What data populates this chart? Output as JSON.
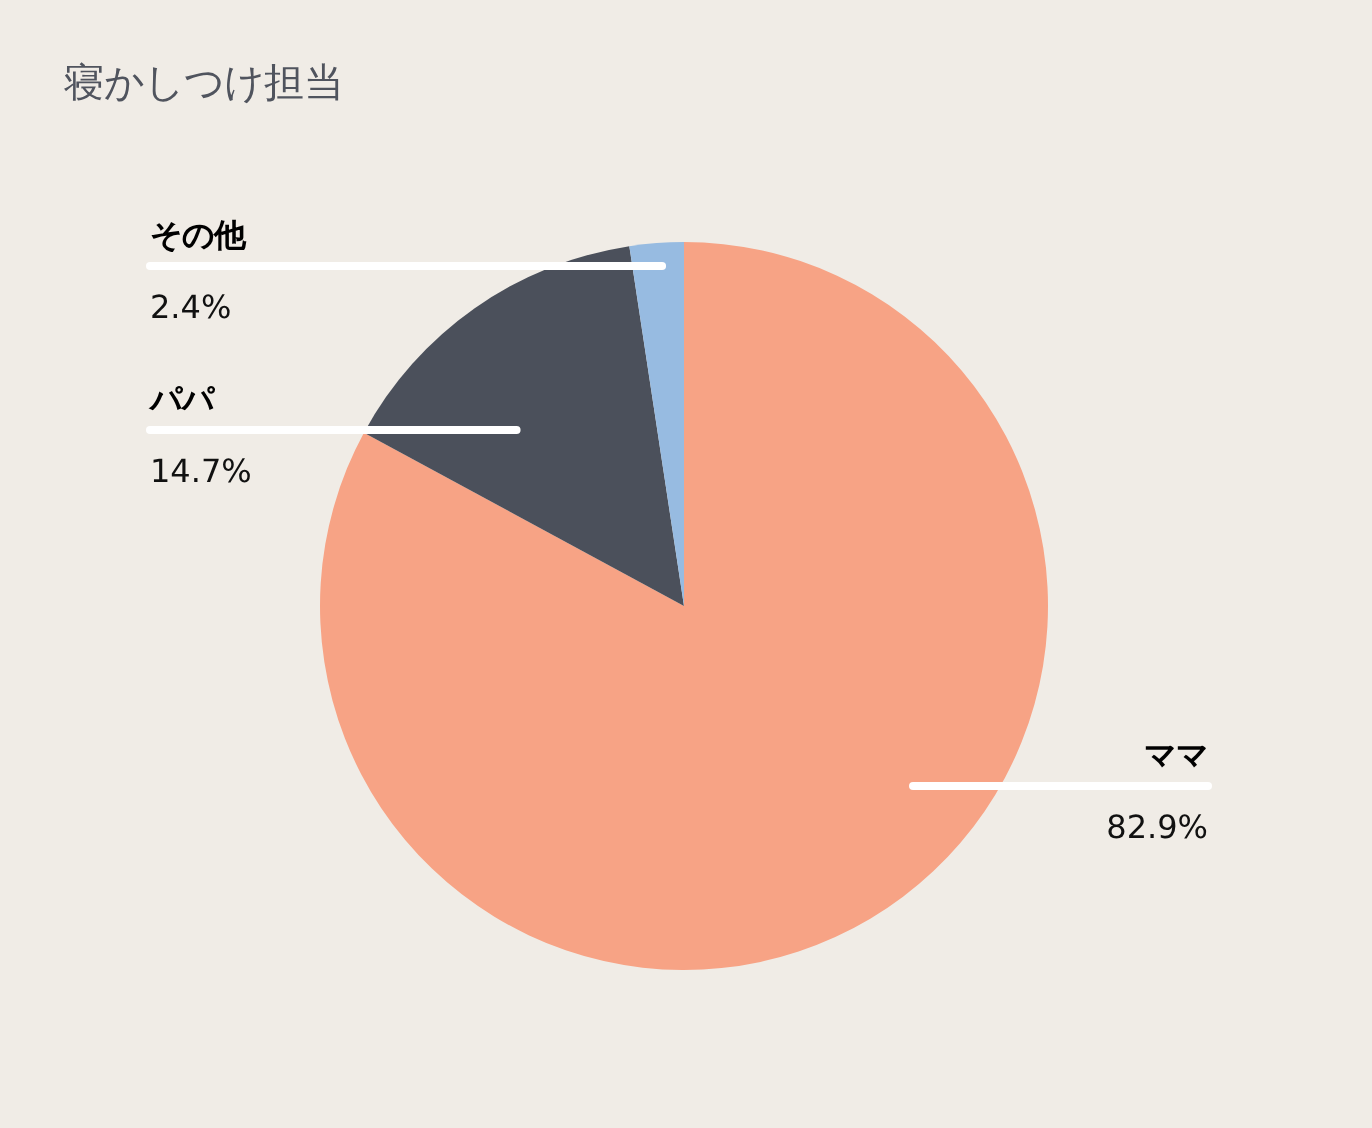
{
  "chart_data": {
    "type": "pie",
    "title": "寝かしつけ担当",
    "categories": [
      "ママ",
      "パパ",
      "その他"
    ],
    "values": [
      82.9,
      14.7,
      2.4
    ],
    "colors": [
      "#f7a385",
      "#4b505b",
      "#97bbe1"
    ],
    "value_labels": [
      "82.9%",
      "14.7%",
      "2.4%"
    ],
    "legend": false
  }
}
